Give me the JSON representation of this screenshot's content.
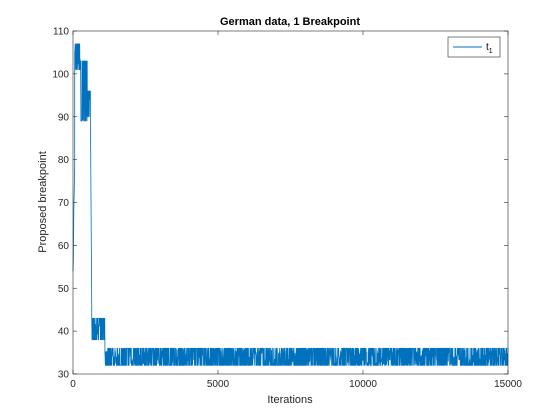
{
  "chart_data": {
    "type": "line",
    "title": "German data, 1 Breakpoint",
    "xlabel": "Iterations",
    "ylabel": "Proposed breakpoint",
    "xlim": [
      0,
      15000
    ],
    "ylim": [
      30,
      110
    ],
    "xticks": [
      0,
      5000,
      10000,
      15000
    ],
    "yticks": [
      30,
      40,
      50,
      60,
      70,
      80,
      90,
      100,
      110
    ],
    "xtick_labels": [
      "0",
      "5000",
      "10000",
      "15000"
    ],
    "ytick_labels": [
      "30",
      "40",
      "50",
      "60",
      "70",
      "80",
      "90",
      "100",
      "110"
    ],
    "legend_position": "top-right",
    "grid": false,
    "series": [
      {
        "name": "t",
        "name_subscript": "1",
        "color": "#0072bd",
        "segments": [
          {
            "x_start": 0,
            "x_end": 60,
            "low": 53,
            "high": 80,
            "mode": "ramp"
          },
          {
            "x_start": 60,
            "x_end": 250,
            "low": 101,
            "high": 107,
            "mode": "noise"
          },
          {
            "x_start": 250,
            "x_end": 500,
            "low": 89,
            "high": 103,
            "mode": "noise"
          },
          {
            "x_start": 500,
            "x_end": 600,
            "low": 90,
            "high": 96,
            "mode": "noise"
          },
          {
            "x_start": 600,
            "x_end": 650,
            "low": 42,
            "high": 90,
            "mode": "drop"
          },
          {
            "x_start": 650,
            "x_end": 1100,
            "low": 38,
            "high": 43,
            "mode": "noise"
          },
          {
            "x_start": 1100,
            "x_end": 15000,
            "low": 32,
            "high": 36,
            "mode": "noise"
          }
        ]
      }
    ]
  }
}
